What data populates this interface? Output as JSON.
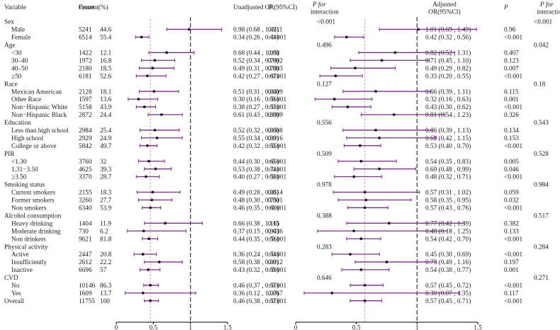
{
  "chart_data": {
    "type": "forest",
    "title": "",
    "headers": {
      "variable": "Variable",
      "count": "Count",
      "percent": "Percent(%)",
      "unadj": "Unadjusted OR(95%CI)",
      "p": "P",
      "p_int_1": "P for",
      "p_int_2": "interaction",
      "adj_1": "Adjusted",
      "adj_2": "OR(95%CI)"
    },
    "xaxis": {
      "ticks": [
        0,
        0.5,
        1,
        1.5
      ],
      "tick_labels": [
        "0",
        "0.5",
        "1",
        "1.5"
      ],
      "ref_line": 1,
      "overall_line_left": 0.46,
      "overall_line_right": 0.57
    },
    "rows": [
      {
        "kind": "group",
        "label": "Sex",
        "pint_unadj": "<0.001",
        "pint_adj": "<0.001"
      },
      {
        "kind": "item",
        "label": "Male",
        "count": "5241",
        "pct": "44.6",
        "ci_u": "0.98 (0.68 , 1.42)",
        "p_u": "0.911",
        "ci_a": "1.01 (0.69 , 1.49)",
        "p_a": "0.96",
        "u": [
          0.98,
          0.68,
          1.42
        ],
        "a": [
          1.01,
          0.69,
          1.49
        ]
      },
      {
        "kind": "item",
        "label": "Female",
        "count": "6514",
        "pct": "55.4",
        "ci_u": "0.34 (0.26 , 0.44)",
        "p_u": "<0.001",
        "ci_a": "0.42 (0.32 , 0.56)",
        "p_a": "<0.001",
        "u": [
          0.34,
          0.26,
          0.44
        ],
        "a": [
          0.42,
          0.32,
          0.56
        ]
      },
      {
        "kind": "group",
        "label": "Age",
        "pint_unadj": "0.496",
        "pint_adj": "0.042"
      },
      {
        "kind": "item",
        "label": "<30",
        "count": "1422",
        "pct": "12.1",
        "ci_u": "0.68 (0.44 , 1.05)",
        "p_u": "0.08",
        "ci_a": "0.82 (0.52 , 1.31)",
        "p_a": "0.407",
        "u": [
          0.68,
          0.44,
          1.05
        ],
        "a": [
          0.82,
          0.52,
          1.31
        ]
      },
      {
        "kind": "item",
        "label": "30–40",
        "count": "1972",
        "pct": "16.8",
        "ci_u": "0.52 (0.34 , 0.79)",
        "p_u": "0.002",
        "ci_a": "0.71 (0.45 , 1.10)",
        "p_a": "0.123",
        "u": [
          0.52,
          0.34,
          0.79
        ],
        "a": [
          0.71,
          0.45,
          1.1
        ]
      },
      {
        "kind": "item",
        "label": "40–50",
        "count": "2180",
        "pct": "18.5",
        "ci_u": "0.49 (0.31 , 0.78)",
        "p_u": "0.003",
        "ci_a": "0.49 (0.29 , 0.82)",
        "p_a": "0.007",
        "u": [
          0.49,
          0.31,
          0.78
        ],
        "a": [
          0.49,
          0.29,
          0.82
        ]
      },
      {
        "kind": "item",
        "label": "≥50",
        "count": "6181",
        "pct": "52.6",
        "ci_u": "0.42 (0.27 , 0.67)",
        "p_u": "<0.001",
        "ci_a": "0.33 (0.20 , 0.55)",
        "p_a": "<0.001",
        "u": [
          0.42,
          0.27,
          0.67
        ],
        "a": [
          0.33,
          0.2,
          0.55
        ]
      },
      {
        "kind": "group",
        "label": "Race",
        "pint_unadj": "0.127",
        "pint_adj": "0.18"
      },
      {
        "kind": "item",
        "label": "Mexican American",
        "count": "2128",
        "pct": "18.1",
        "ci_u": "0.51 (0.31 , 0.84)",
        "p_u": "0.009",
        "ci_a": "0.66 (0.39 , 1.11)",
        "p_a": "0.115",
        "u": [
          0.51,
          0.31,
          0.84
        ],
        "a": [
          0.66,
          0.39,
          1.11
        ]
      },
      {
        "kind": "item",
        "label": "Other Race",
        "count": "1597",
        "pct": "13.6",
        "ci_u": "0.30 (0.16 , 0.56)",
        "p_u": "<0.001",
        "ci_a": "0.32 (0.16 , 0.63)",
        "p_a": "0.001",
        "u": [
          0.3,
          0.16,
          0.56
        ],
        "a": [
          0.32,
          0.16,
          0.63
        ]
      },
      {
        "kind": "item",
        "label": "Non−Hispanic White",
        "count": "5158",
        "pct": "43.9",
        "ci_u": "0.38 (0.27 , 0.53)",
        "p_u": "<0.001",
        "ci_a": "0.43 (0.30 , 0.62)",
        "p_a": "<0.001",
        "u": [
          0.38,
          0.27,
          0.53
        ],
        "a": [
          0.43,
          0.3,
          0.62
        ]
      },
      {
        "kind": "item",
        "label": "Non−Hispanic Black",
        "count": "2872",
        "pct": "24.4",
        "ci_u": "0.61 (0.43 , 0.89)",
        "p_u": "0.009",
        "ci_a": "0.81 (0.54 , 1.23)",
        "p_a": "0.326",
        "u": [
          0.61,
          0.43,
          0.89
        ],
        "a": [
          0.81,
          0.54,
          1.23
        ]
      },
      {
        "kind": "group",
        "label": "Education",
        "pint_unadj": "0.556",
        "pint_adj": "0.543"
      },
      {
        "kind": "item",
        "label": "Less than high school",
        "count": "2984",
        "pct": "25.4",
        "ci_u": "0.52 (0.32 , 0.85)",
        "p_u": "0.008",
        "ci_a": "0.66 (0.39 , 1.13)",
        "p_a": "0.134",
        "u": [
          0.52,
          0.32,
          0.85
        ],
        "a": [
          0.66,
          0.39,
          1.13
        ]
      },
      {
        "kind": "item",
        "label": "High school",
        "count": "2929",
        "pct": "24.9",
        "ci_u": "0.55 (0.34 , 0.89)",
        "p_u": "0.016",
        "ci_a": "0.69 (0.42 , 1.15)",
        "p_a": "0.153",
        "u": [
          0.55,
          0.34,
          0.89
        ],
        "a": [
          0.69,
          0.42,
          1.15
        ]
      },
      {
        "kind": "item",
        "label": "College or above",
        "count": "5842",
        "pct": "49.7",
        "ci_u": "0.42 (0.32 , 0.55)",
        "p_u": "<0.001",
        "ci_a": "0.53 (0.40 , 0.70)",
        "p_a": "<0.001",
        "u": [
          0.42,
          0.32,
          0.55
        ],
        "a": [
          0.53,
          0.4,
          0.7
        ]
      },
      {
        "kind": "group",
        "label": "PIR",
        "pint_unadj": "0.509",
        "pint_adj": "0.528"
      },
      {
        "kind": "item",
        "label": "<1.30",
        "count": "3760",
        "pct": "32",
        "ci_u": "0.44 (0.30 , 0.65)",
        "p_u": "<0.001",
        "ci_a": "0.54 (0.35 , 0.83)",
        "p_a": "0.005",
        "u": [
          0.44,
          0.3,
          0.65
        ],
        "a": [
          0.54,
          0.35,
          0.83
        ]
      },
      {
        "kind": "item",
        "label": "1.31−3.50",
        "count": "4625",
        "pct": "39.3",
        "ci_u": "0.53 (0.38 , 0.74)",
        "p_u": "<0.001",
        "ci_a": "0.69 (0.48 , 0.99)",
        "p_a": "0.046",
        "u": [
          0.53,
          0.38,
          0.74
        ],
        "a": [
          0.69,
          0.48,
          0.99
        ]
      },
      {
        "kind": "item",
        "label": "≥3.50",
        "count": "3370",
        "pct": "28.7",
        "ci_u": "0.40 (0.27 , 0.58)",
        "p_u": "<0.001",
        "ci_a": "0.48 (0.32 , 0.71)",
        "p_a": "<0.001",
        "u": [
          0.4,
          0.27,
          0.58
        ],
        "a": [
          0.48,
          0.32,
          0.71
        ]
      },
      {
        "kind": "group",
        "label": "Smoking status",
        "pint_unadj": "0.978",
        "pint_adj": "0.984"
      },
      {
        "kind": "item",
        "label": "Current smokers",
        "count": "2155",
        "pct": "18.3",
        "ci_u": "0.49 (0.28 , 0.86)",
        "p_u": "0.014",
        "ci_a": "0.57 (0.31 , 1.02)",
        "p_a": "0.059",
        "u": [
          0.49,
          0.28,
          0.86
        ],
        "a": [
          0.57,
          0.31,
          1.02
        ]
      },
      {
        "kind": "item",
        "label": "Former smokers",
        "count": "3260",
        "pct": "27.7",
        "ci_u": "0.48 (0.30 , 0.75)",
        "p_u": "0.001",
        "ci_a": "0.58 (0.35 , 0.95)",
        "p_a": "0.032",
        "u": [
          0.48,
          0.3,
          0.75
        ],
        "a": [
          0.58,
          0.35,
          0.95
        ]
      },
      {
        "kind": "item",
        "label": "Non smokers",
        "count": "6340",
        "pct": "53.9",
        "ci_u": "0.46 (0.35 , 0.60)",
        "p_u": "<0.001",
        "ci_a": "0.57 (0.43 , 0.76)",
        "p_a": "<0.001",
        "u": [
          0.46,
          0.35,
          0.6
        ],
        "a": [
          0.57,
          0.43,
          0.76
        ]
      },
      {
        "kind": "group",
        "label": "Alcohol consumption",
        "pint_unadj": "0.388",
        "pint_adj": "0.517"
      },
      {
        "kind": "item",
        "label": "Heavy drinking",
        "count": "1404",
        "pct": "11.9",
        "ci_u": "0.66 (0.38 , 1.16)",
        "p_u": "0.15",
        "ci_a": "0.77 (0.42 , 1.39)",
        "p_a": "0.382",
        "u": [
          0.66,
          0.38,
          1.16
        ],
        "a": [
          0.77,
          0.42,
          1.39
        ]
      },
      {
        "kind": "item",
        "label": "Moderate drinking",
        "count": "730",
        "pct": "6.2",
        "ci_u": "0.37 (0.15 , 0.94)",
        "p_u": "0.036",
        "ci_a": "0.48 (0.18 , 1.25)",
        "p_a": "0.133",
        "u": [
          0.37,
          0.15,
          0.94
        ],
        "a": [
          0.48,
          0.18,
          1.25
        ]
      },
      {
        "kind": "item",
        "label": "Non drinkers",
        "count": "9621",
        "pct": "81.8",
        "ci_u": "0.44 (0.35 , 0.56)",
        "p_u": "<0.001",
        "ci_a": "0.54 (0.42 , 0.70)",
        "p_a": "<0.001",
        "u": [
          0.44,
          0.35,
          0.56
        ],
        "a": [
          0.54,
          0.42,
          0.7
        ]
      },
      {
        "kind": "group",
        "label": "Physical activity",
        "pint_unadj": "0.283",
        "pint_adj": "0.284"
      },
      {
        "kind": "item",
        "label": "Active",
        "count": "2447",
        "pct": "20.8",
        "ci_u": "0.36 (0.24 , 0.54)",
        "p_u": "<0.001",
        "ci_a": "0.45 (0.30 , 0.69)",
        "p_a": "<0.001",
        "u": [
          0.36,
          0.24,
          0.54
        ],
        "a": [
          0.45,
          0.3,
          0.69
        ]
      },
      {
        "kind": "item",
        "label": "Insufficiently",
        "count": "2612",
        "pct": "22.2",
        "ci_u": "0.58 (0.38 , 0.89)",
        "p_u": "0.012",
        "ci_a": "0.75 (0.49 , 1.16)",
        "p_a": "0.197",
        "u": [
          0.58,
          0.38,
          0.89
        ],
        "a": [
          0.75,
          0.49,
          1.16
        ]
      },
      {
        "kind": "item",
        "label": "Inactive",
        "count": "6696",
        "pct": "57",
        "ci_u": "0.43 (0.32 , 0.59)",
        "p_u": "<0.001",
        "ci_a": "0.54 (0.38 , 0.77)",
        "p_a": "0.001",
        "u": [
          0.43,
          0.32,
          0.59
        ],
        "a": [
          0.54,
          0.38,
          0.77
        ]
      },
      {
        "kind": "group",
        "label": "CVD",
        "pint_unadj": "0.646",
        "pint_adj": "0.271"
      },
      {
        "kind": "item",
        "label": "No",
        "count": "10146",
        "pct": "86.3",
        "ci_u": "0.46 (0.37 , 0.57)",
        "p_u": "<0.001",
        "ci_a": "0.57 (0.45 , 0.72)",
        "p_a": "<0.001",
        "u": [
          0.46,
          0.37,
          0.57
        ],
        "a": [
          0.57,
          0.45,
          0.72
        ]
      },
      {
        "kind": "item",
        "label": "Yes",
        "count": "1609",
        "pct": "13.7",
        "ci_u": "0.36 (0.12 , 1.07)",
        "p_u": "0.067",
        "ci_a": "0.30 (0.07 , 1.35)",
        "p_a": "0.117",
        "u": [
          0.36,
          0.12,
          1.07
        ],
        "a": [
          0.3,
          0.07,
          1.35
        ]
      },
      {
        "kind": "overall",
        "label": "Overall",
        "count": "11755",
        "pct": "100",
        "ci_u": "0.46 (0.38 , 0.57)",
        "p_u": "<0.001",
        "ci_a": "0.57 (0.45 , 0.71)",
        "p_a": "<0.001",
        "u": [
          0.46,
          0.38,
          0.57
        ],
        "a": [
          0.57,
          0.45,
          0.71
        ]
      }
    ],
    "colors": {
      "ci_line": "#7a2d87",
      "point": "#1a1a1a",
      "ref_line": "#333333",
      "overall_line": "#e39aa0",
      "text": "#1a1a1a"
    }
  }
}
